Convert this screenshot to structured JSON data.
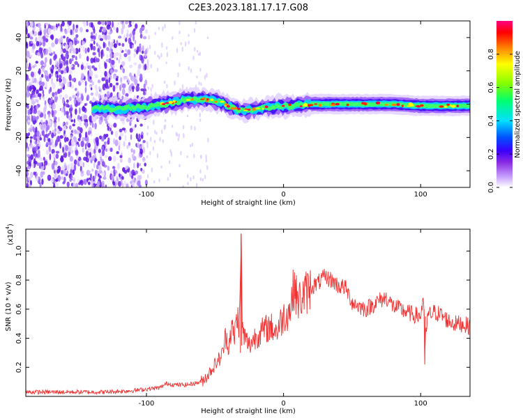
{
  "title": "C2E3.2023.181.17.17.G08",
  "chart_data": [
    {
      "type": "heatmap",
      "xlabel": "Height of straight line (km)",
      "ylabel": "Frequency (Hz)",
      "xlim": [
        -188,
        136
      ],
      "ylim": [
        -50,
        50
      ],
      "xticks": [
        -100,
        0,
        100
      ],
      "yticks": [
        -40,
        -20,
        0,
        20,
        40
      ],
      "grid": false,
      "colorbar": {
        "label": "Normalized spectral amplitude",
        "range": [
          0,
          1
        ],
        "ticks": [
          0.0,
          0.2,
          0.4,
          0.6,
          0.8
        ],
        "colors": [
          "#ffffff",
          "#c9a6ff",
          "#8a2be2",
          "#3a00ff",
          "#0050ff",
          "#00e0ff",
          "#00ff70",
          "#80ff00",
          "#ffff00",
          "#ff8000",
          "#ff0000",
          "#ff0080"
        ]
      },
      "ridge": {
        "x": [
          -140,
          -130,
          -120,
          -110,
          -100,
          -90,
          -80,
          -70,
          -60,
          -50,
          -45,
          -40,
          -35,
          -30,
          -20,
          -10,
          0,
          10,
          20,
          40,
          60,
          80,
          100,
          120,
          136
        ],
        "freq": [
          -3,
          -2,
          -3,
          -2,
          -2,
          0,
          1,
          3,
          3,
          2,
          1,
          -1,
          -3,
          -4,
          -3,
          -2,
          -1,
          -1,
          0,
          0,
          0,
          0,
          -1,
          -1,
          -1
        ]
      }
    },
    {
      "type": "line",
      "xlabel": "Height of straight line (km)",
      "ylabel": "SNR (10 * v/v)",
      "y_multiplier": "(x10",
      "y_exponent": "4",
      "y_multiplier_close": ")",
      "xlim": [
        -188,
        136
      ],
      "ylim": [
        0,
        1.15
      ],
      "xticks": [
        -100,
        0,
        100
      ],
      "yticks": [
        0.2,
        0.4,
        0.6,
        0.8,
        1.0
      ],
      "grid": false,
      "series": [
        {
          "color": "#ee3333",
          "x": [
            -188,
            -170,
            -150,
            -130,
            -110,
            -100,
            -90,
            -85,
            -80,
            -70,
            -60,
            -55,
            -50,
            -45,
            -42,
            -40,
            -38,
            -36,
            -34,
            -32,
            -31,
            -30,
            -28,
            -25,
            -20,
            -15,
            -10,
            -5,
            0,
            5,
            8,
            10,
            15,
            20,
            25,
            30,
            35,
            40,
            45,
            50,
            55,
            60,
            65,
            70,
            75,
            80,
            85,
            90,
            95,
            100,
            102,
            103,
            105,
            110,
            115,
            120,
            125,
            130,
            136
          ],
          "values": [
            0.03,
            0.03,
            0.03,
            0.03,
            0.04,
            0.05,
            0.06,
            0.09,
            0.08,
            0.08,
            0.1,
            0.15,
            0.22,
            0.28,
            0.42,
            0.35,
            0.48,
            0.4,
            0.55,
            0.5,
            1.12,
            0.45,
            0.4,
            0.35,
            0.42,
            0.45,
            0.48,
            0.45,
            0.55,
            0.6,
            0.78,
            0.65,
            0.7,
            0.75,
            0.78,
            0.82,
            0.8,
            0.76,
            0.75,
            0.65,
            0.62,
            0.6,
            0.63,
            0.66,
            0.68,
            0.62,
            0.6,
            0.58,
            0.56,
            0.55,
            0.7,
            0.32,
            0.55,
            0.58,
            0.56,
            0.52,
            0.5,
            0.5,
            0.48
          ]
        }
      ]
    }
  ]
}
